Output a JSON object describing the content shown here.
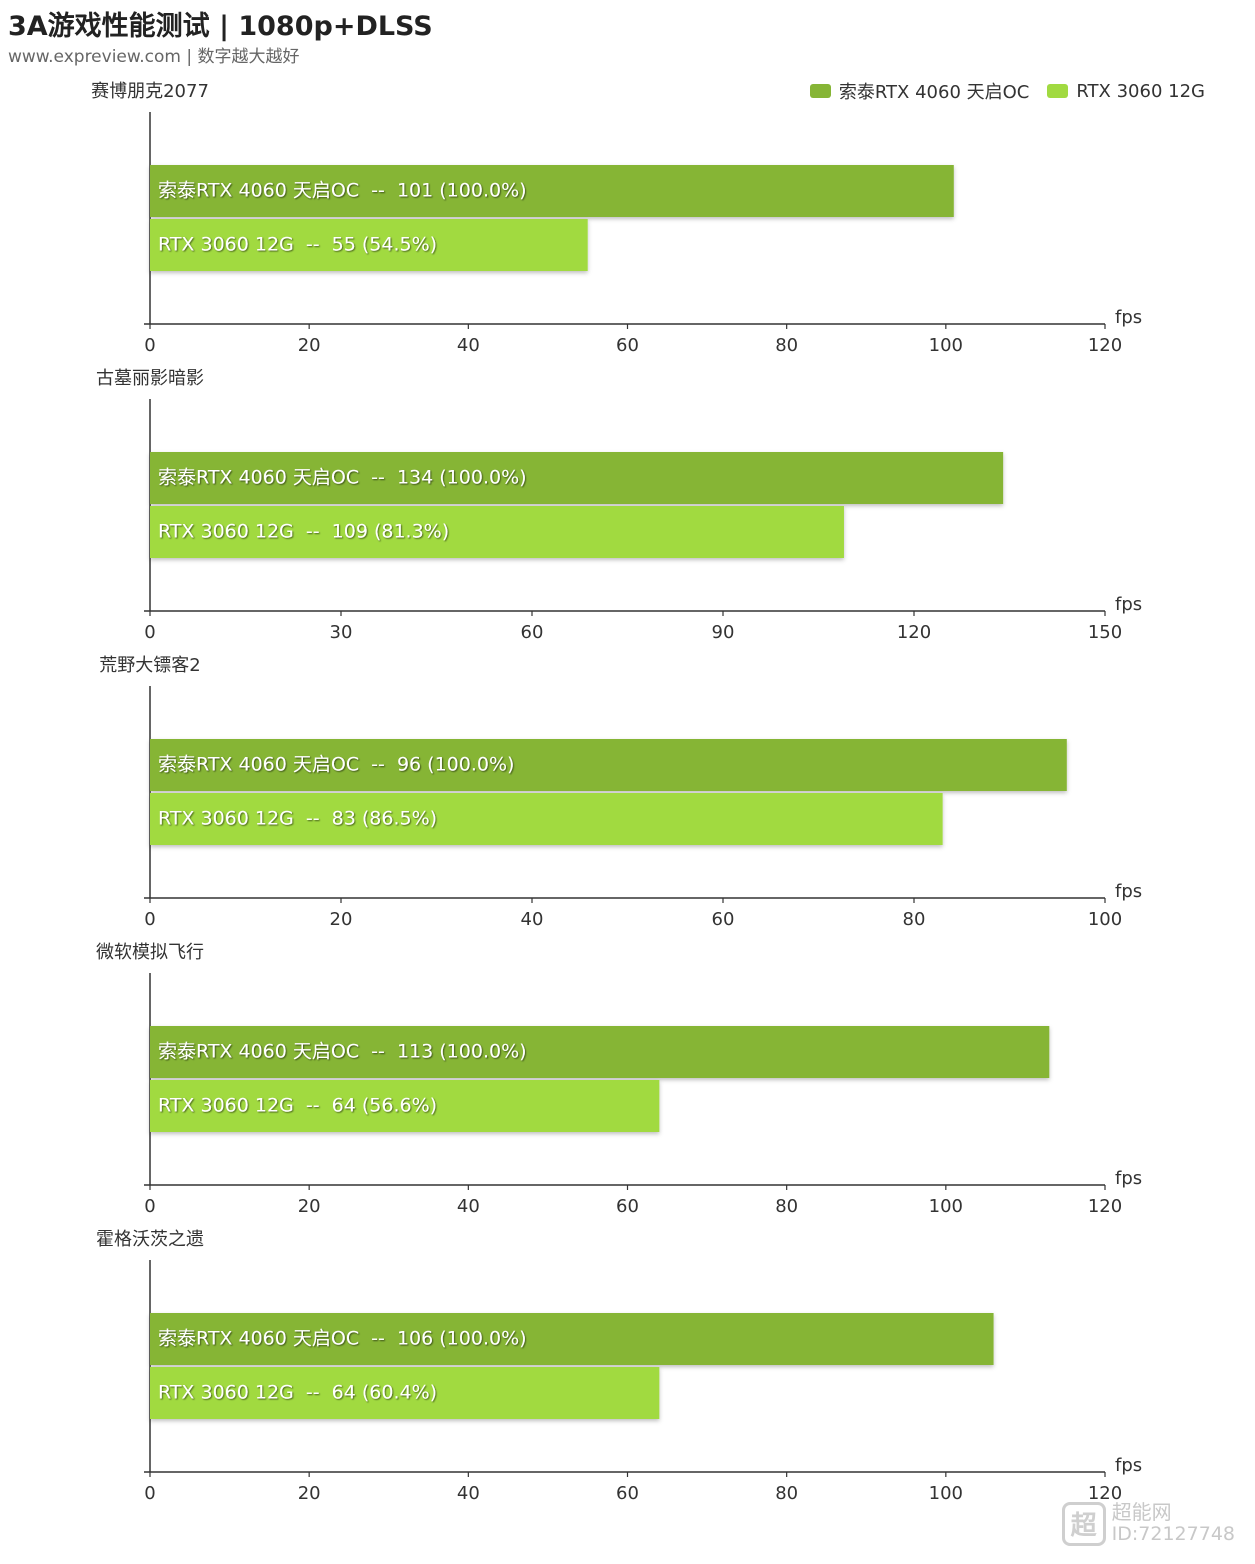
{
  "header": {
    "title": "3A游戏性能测试 | 1080p+DLSS",
    "subtitle": "www.expreview.com | 数字越大越好"
  },
  "legend": [
    {
      "name": "索泰RTX 4060 天启OC",
      "color": "#86b536"
    },
    {
      "name": "RTX 3060 12G",
      "color": "#a1da41"
    }
  ],
  "watermark": {
    "icon": "超",
    "name": "超能网",
    "id": "ID:72127748"
  },
  "chart_data": [
    {
      "type": "bar",
      "title": "赛博朋克2077",
      "xlabel": "fps",
      "xlim": [
        0,
        120
      ],
      "ticks": [
        0,
        20,
        40,
        60,
        80,
        100,
        120
      ],
      "categories": [
        "索泰RTX 4060 天启OC",
        "RTX 3060 12G"
      ],
      "values": [
        101,
        55
      ],
      "data_labels": [
        "索泰RTX 4060 天启OC  --  101 (100.0%)",
        "RTX 3060 12G  --  55 (54.5%)"
      ]
    },
    {
      "type": "bar",
      "title": "古墓丽影暗影",
      "xlabel": "fps",
      "xlim": [
        0,
        150
      ],
      "ticks": [
        0,
        30,
        60,
        90,
        120,
        150
      ],
      "categories": [
        "索泰RTX 4060 天启OC",
        "RTX 3060 12G"
      ],
      "values": [
        134,
        109
      ],
      "data_labels": [
        "索泰RTX 4060 天启OC  --  134 (100.0%)",
        "RTX 3060 12G  --  109 (81.3%)"
      ]
    },
    {
      "type": "bar",
      "title": "荒野大镖客2",
      "xlabel": "fps",
      "xlim": [
        0,
        100
      ],
      "ticks": [
        0,
        20,
        40,
        60,
        80,
        100
      ],
      "categories": [
        "索泰RTX 4060 天启OC",
        "RTX 3060 12G"
      ],
      "values": [
        96,
        83
      ],
      "data_labels": [
        "索泰RTX 4060 天启OC  --  96 (100.0%)",
        "RTX 3060 12G  --  83 (86.5%)"
      ]
    },
    {
      "type": "bar",
      "title": "微软模拟飞行",
      "xlabel": "fps",
      "xlim": [
        0,
        120
      ],
      "ticks": [
        0,
        20,
        40,
        60,
        80,
        100,
        120
      ],
      "categories": [
        "索泰RTX 4060 天启OC",
        "RTX 3060 12G"
      ],
      "values": [
        113,
        64
      ],
      "data_labels": [
        "索泰RTX 4060 天启OC  --  113 (100.0%)",
        "RTX 3060 12G  --  64 (56.6%)"
      ]
    },
    {
      "type": "bar",
      "title": "霍格沃茨之遗",
      "xlabel": "fps",
      "xlim": [
        0,
        120
      ],
      "ticks": [
        0,
        20,
        40,
        60,
        80,
        100,
        120
      ],
      "categories": [
        "索泰RTX 4060 天启OC",
        "RTX 3060 12G"
      ],
      "values": [
        106,
        64
      ],
      "data_labels": [
        "索泰RTX 4060 天启OC  --  106 (100.0%)",
        "RTX 3060 12G  --  64 (60.4%)"
      ]
    }
  ]
}
